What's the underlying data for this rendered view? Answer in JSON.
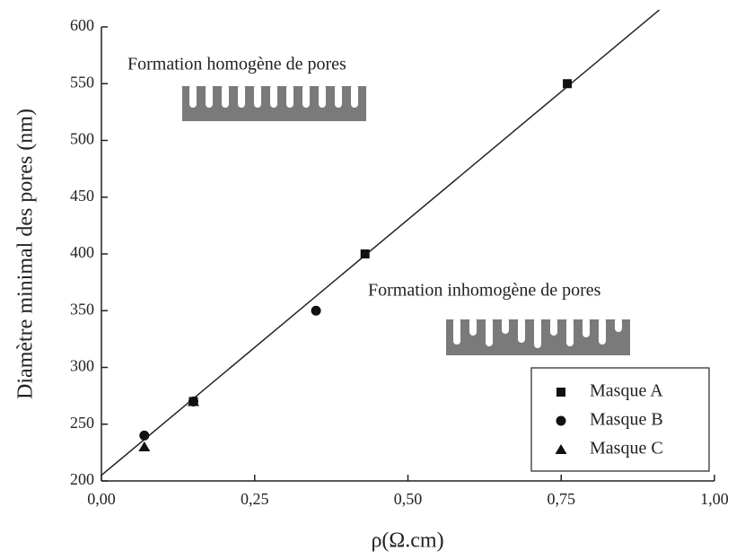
{
  "chart_data": {
    "type": "scatter",
    "xlabel": "ρ(Ω.cm)",
    "ylabel": "Diamètre minimal des pores (nm)",
    "annotations": [
      "Formation homogène de pores",
      "Formation inhomogène de pores"
    ],
    "series": [
      {
        "name": "Masque A",
        "marker": "square",
        "color": "#111111",
        "x": [
          0.15,
          0.43,
          0.76
        ],
        "values": [
          270,
          400,
          550
        ]
      },
      {
        "name": "Masque B",
        "marker": "circle",
        "color": "#111111",
        "x": [
          0.07,
          0.35,
          0.15
        ],
        "values": [
          240,
          350,
          270
        ]
      },
      {
        "name": "Masque C",
        "marker": "triangle",
        "color": "#111111",
        "x": [
          0.07,
          0.15
        ],
        "values": [
          230,
          270
        ]
      }
    ],
    "fit_line": {
      "x": [
        0,
        0.91
      ],
      "values": [
        205,
        615
      ]
    },
    "xlim": [
      0,
      1
    ],
    "ylim": [
      200,
      600
    ],
    "xticks": [
      {
        "value": 0,
        "label": "0,00"
      },
      {
        "value": 0.25,
        "label": "0,25"
      },
      {
        "value": 0.5,
        "label": "0,50"
      },
      {
        "value": 0.75,
        "label": "0,75"
      },
      {
        "value": 1,
        "label": "1,00"
      }
    ],
    "yticks": [
      200,
      250,
      300,
      350,
      400,
      450,
      500,
      550,
      600
    ],
    "legend": "lower-right"
  }
}
